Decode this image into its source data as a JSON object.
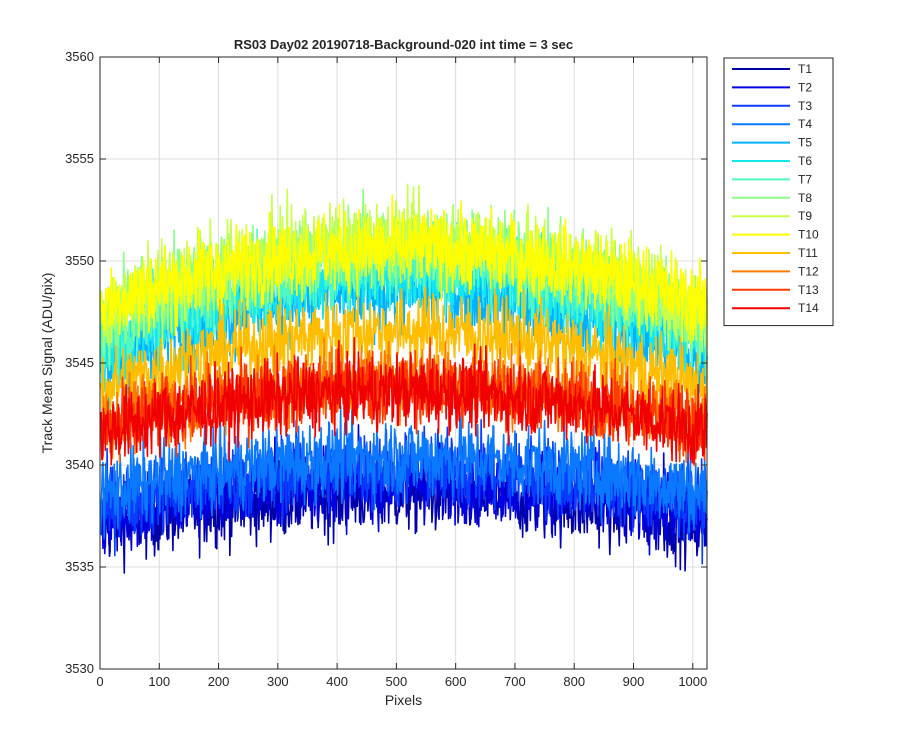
{
  "chart_data": {
    "type": "line",
    "title": "RS03 Day02 20190718-Background-020 int time = 3 sec",
    "xlabel": "Pixels",
    "ylabel": "Track Mean Signal (ADU/pix)",
    "xlim": [
      0,
      1024
    ],
    "ylim": [
      3530,
      3560
    ],
    "xticks": [
      0,
      100,
      200,
      300,
      400,
      500,
      600,
      700,
      800,
      900,
      1000
    ],
    "yticks": [
      3530,
      3535,
      3540,
      3545,
      3550,
      3555,
      3560
    ],
    "grid": true,
    "legend_position": "outside-top-right",
    "x_range": [
      1,
      1024
    ],
    "series": [
      {
        "name": "T1",
        "color": "#0000a8",
        "y_start": 3537.0,
        "y_mid": 3538.6,
        "y_end": 3537.0,
        "noise": 1.6
      },
      {
        "name": "T2",
        "color": "#0000e0",
        "y_start": 3537.4,
        "y_mid": 3539.2,
        "y_end": 3537.4,
        "noise": 1.6
      },
      {
        "name": "T3",
        "color": "#0a3cff",
        "y_start": 3538.0,
        "y_mid": 3539.8,
        "y_end": 3538.0,
        "noise": 1.6
      },
      {
        "name": "T4",
        "color": "#0a78ff",
        "y_start": 3538.6,
        "y_mid": 3540.4,
        "y_end": 3538.6,
        "noise": 1.6
      },
      {
        "name": "T5",
        "color": "#00b0ff",
        "y_start": 3545.0,
        "y_mid": 3548.6,
        "y_end": 3545.0,
        "noise": 1.7
      },
      {
        "name": "T6",
        "color": "#12e6ef",
        "y_start": 3545.6,
        "y_mid": 3549.4,
        "y_end": 3545.6,
        "noise": 1.7
      },
      {
        "name": "T7",
        "color": "#4ff7c3",
        "y_start": 3546.2,
        "y_mid": 3550.0,
        "y_end": 3546.2,
        "noise": 1.7
      },
      {
        "name": "T8",
        "color": "#8cff87",
        "y_start": 3547.0,
        "y_mid": 3550.8,
        "y_end": 3547.0,
        "noise": 1.7
      },
      {
        "name": "T9",
        "color": "#c8ff49",
        "y_start": 3547.4,
        "y_mid": 3551.0,
        "y_end": 3547.4,
        "noise": 1.7
      },
      {
        "name": "T10",
        "color": "#ffff00",
        "y_start": 3547.8,
        "y_mid": 3550.6,
        "y_end": 3547.8,
        "noise": 1.6
      },
      {
        "name": "T11",
        "color": "#ffbd00",
        "y_start": 3543.6,
        "y_mid": 3546.6,
        "y_end": 3543.6,
        "noise": 1.6
      },
      {
        "name": "T12",
        "color": "#ff7a00",
        "y_start": 3542.0,
        "y_mid": 3544.2,
        "y_end": 3542.0,
        "noise": 1.5
      },
      {
        "name": "T13",
        "color": "#ff3a00",
        "y_start": 3541.8,
        "y_mid": 3543.8,
        "y_end": 3541.8,
        "noise": 1.5
      },
      {
        "name": "T14",
        "color": "#f00000",
        "y_start": 3541.6,
        "y_mid": 3543.6,
        "y_end": 3541.6,
        "noise": 1.5
      }
    ]
  }
}
